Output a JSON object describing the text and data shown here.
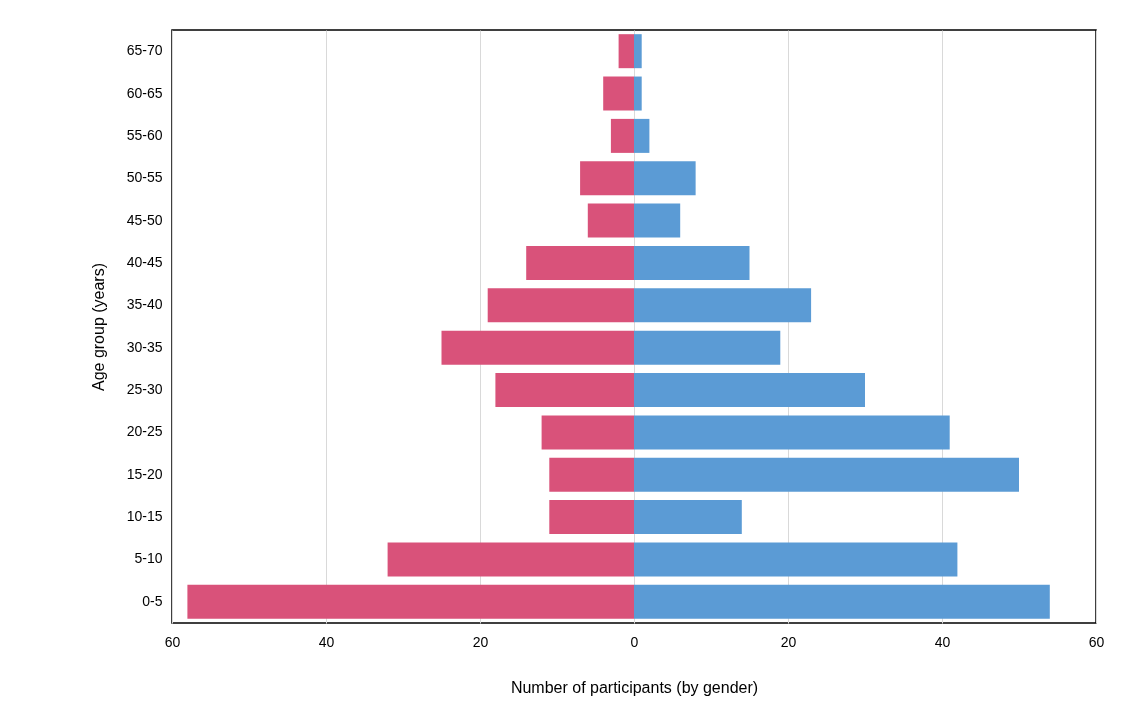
{
  "chart_data": {
    "type": "bar",
    "orientation": "horizontal",
    "stacked": true,
    "xlabel": "Number of participants (by gender)",
    "ylabel": "Age group (years)",
    "categories": [
      "65-70",
      "60-65",
      "55-60",
      "50-55",
      "45-50",
      "40-45",
      "35-40",
      "30-35",
      "25-30",
      "20-25",
      "15-20",
      "10-15",
      "5-10",
      "0-5"
    ],
    "series": [
      {
        "color": "#d9527a",
        "values": [
          -2,
          -4,
          -3,
          -7,
          -6,
          -14,
          -19,
          -25,
          -18,
          -12,
          -11,
          -11,
          -32,
          -58
        ]
      },
      {
        "color": "#5b9bd5",
        "values": [
          1,
          1,
          2,
          8,
          6,
          15,
          23,
          19,
          30,
          41,
          50,
          14,
          42,
          54
        ]
      }
    ],
    "xlim": [
      -60,
      60
    ],
    "xticks": [
      {
        "value": -60,
        "label": "60"
      },
      {
        "value": -40,
        "label": "40"
      },
      {
        "value": -20,
        "label": "20"
      },
      0,
      20,
      40,
      60
    ],
    "grid": "x",
    "legend": false
  }
}
